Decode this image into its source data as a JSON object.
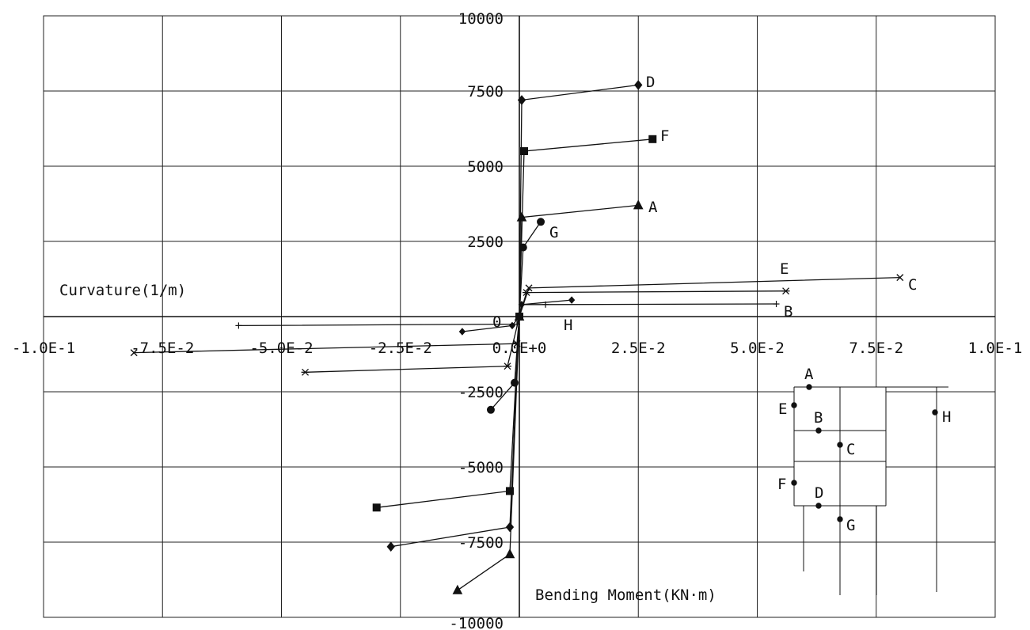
{
  "chart_data": {
    "type": "line",
    "x_axis_name": "Curvature(1/m)",
    "y_axis_name": "Bending Moment(KN·m)",
    "xlim": [
      -0.1,
      0.1
    ],
    "ylim": [
      -10000,
      10000
    ],
    "x_ticks": [
      -0.1,
      -0.075,
      -0.05,
      -0.025,
      0,
      0.025,
      0.05,
      0.075,
      0.1
    ],
    "x_tick_labels": [
      "-1.0E-1",
      "-7.5E-2",
      "-5.0E-2",
      "-2.5E-2",
      "0.0E+0",
      "2.5E-2",
      "5.0E-2",
      "7.5E-2",
      "1.0E-1"
    ],
    "y_ticks": [
      10000,
      7500,
      5000,
      2500,
      -2500,
      -5000,
      -7500,
      -10000
    ],
    "y_tick_labels": [
      "10000",
      "7500",
      "5000",
      "2500",
      "-2500",
      "-5000",
      "-7500",
      "-10000"
    ],
    "origin_label": "0",
    "grid": true,
    "series": [
      {
        "name": "A",
        "marker": "triangle",
        "x": [
          -0.013,
          -0.002,
          0,
          0.0005,
          0.025
        ],
        "y": [
          -9100,
          -7900,
          0,
          3300,
          3700
        ]
      },
      {
        "name": "B",
        "marker": "plus",
        "x": [
          -0.059,
          -0.0005,
          0,
          0.0005,
          0.0055,
          0.054
        ],
        "y": [
          -300,
          -250,
          0,
          400,
          400,
          420
        ]
      },
      {
        "name": "C",
        "marker": "cross",
        "x": [
          -0.081,
          -0.0005,
          0,
          0.002,
          0.08
        ],
        "y": [
          -1200,
          -900,
          0,
          950,
          1300
        ]
      },
      {
        "name": "D",
        "marker": "diamond",
        "x": [
          -0.027,
          -0.002,
          0,
          0.0005,
          0.025
        ],
        "y": [
          -7650,
          -7000,
          0,
          7200,
          7700
        ]
      },
      {
        "name": "E",
        "marker": "asterisk",
        "x": [
          -0.045,
          -0.0025,
          0,
          0.0015,
          0.056
        ],
        "y": [
          -1850,
          -1650,
          0,
          800,
          850
        ]
      },
      {
        "name": "F",
        "marker": "square",
        "x": [
          -0.03,
          -0.002,
          0,
          0.001,
          0.028
        ],
        "y": [
          -6350,
          -5800,
          0,
          5500,
          5900
        ]
      },
      {
        "name": "G",
        "marker": "circle",
        "x": [
          -0.006,
          -0.001,
          0,
          0.0008,
          0.0045
        ],
        "y": [
          -3100,
          -2200,
          0,
          2300,
          3150
        ]
      },
      {
        "name": "H",
        "marker": "diamond-small",
        "x": [
          -0.012,
          -0.0015,
          0,
          0.0005,
          0.011
        ],
        "y": [
          -500,
          -300,
          0,
          400,
          550
        ]
      }
    ],
    "series_end_labels": [
      "D",
      "F",
      "A",
      "G",
      "E",
      "C",
      "B",
      "H"
    ]
  },
  "inset": {
    "point_labels": [
      "A",
      "E",
      "B",
      "C",
      "F",
      "D",
      "G",
      "H"
    ]
  },
  "colors": {
    "line": "#111111",
    "background": "#ffffff",
    "grid": "#222222"
  }
}
